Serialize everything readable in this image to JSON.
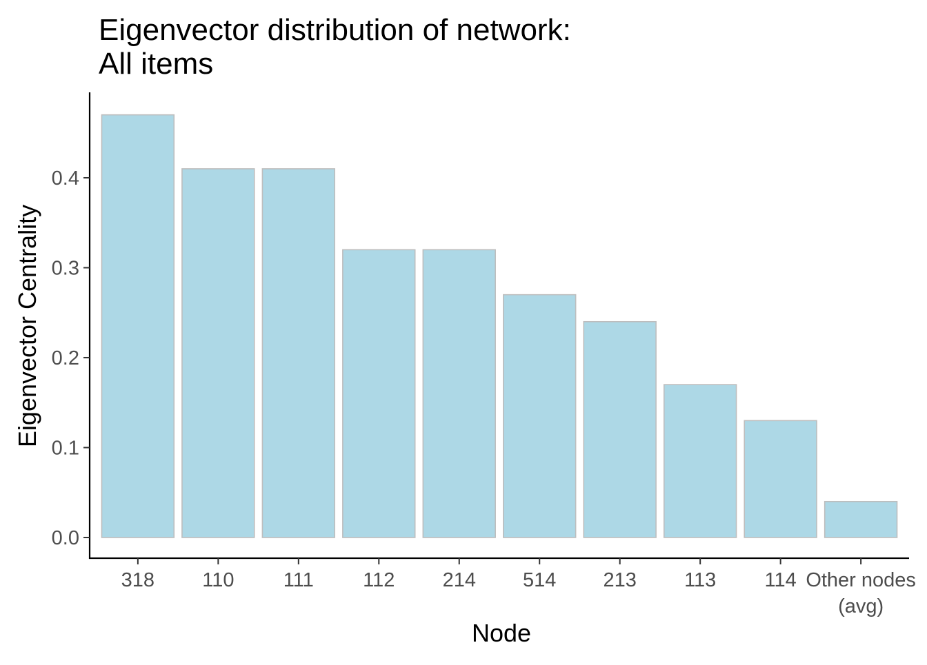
{
  "chart_data": {
    "type": "bar",
    "title": [
      "Eigenvector distribution of network:",
      "All items"
    ],
    "xlabel": "Node",
    "ylabel": "Eigenvector Centrality",
    "categories": [
      [
        "318"
      ],
      [
        "110"
      ],
      [
        "111"
      ],
      [
        "112"
      ],
      [
        "214"
      ],
      [
        "514"
      ],
      [
        "213"
      ],
      [
        "113"
      ],
      [
        "114"
      ],
      [
        "Other nodes",
        "(avg)"
      ]
    ],
    "values": [
      0.47,
      0.41,
      0.41,
      0.32,
      0.32,
      0.27,
      0.24,
      0.17,
      0.13,
      0.04
    ],
    "ylim": [
      -0.023,
      0.495
    ],
    "yticks": [
      0.0,
      0.1,
      0.2,
      0.3,
      0.4
    ],
    "ytick_labels": [
      "0.0",
      "0.1",
      "0.2",
      "0.3",
      "0.4"
    ],
    "grid": false,
    "legend": "none",
    "colors": {
      "bar_fill": "#add8e6",
      "bar_outline": "#bdbdbd",
      "axis": "#000000",
      "tick_text": "#4d4d4d"
    }
  }
}
